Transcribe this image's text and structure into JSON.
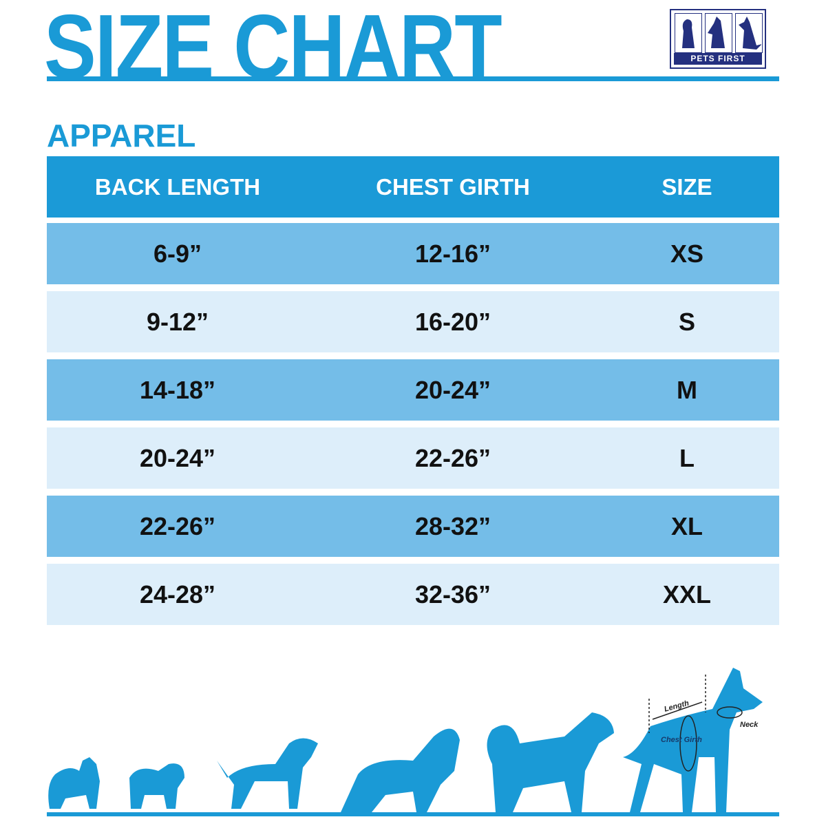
{
  "title": "SIZE CHART",
  "logo": {
    "text": "PETS FIRST",
    "color": "#24307f"
  },
  "section": "APPAREL",
  "colors": {
    "accent": "#1a9ad6",
    "row_dark": "#74bde8",
    "row_light": "#ddeefa"
  },
  "table": {
    "headers": [
      "BACK LENGTH",
      "CHEST GIRTH",
      "SIZE"
    ],
    "rows": [
      [
        "6-9”",
        "12-16”",
        "XS"
      ],
      [
        "9-12”",
        "16-20”",
        "S"
      ],
      [
        "14-18”",
        "20-24”",
        "M"
      ],
      [
        "20-24”",
        "22-26”",
        "L"
      ],
      [
        "22-26”",
        "28-32”",
        "XL"
      ],
      [
        "24-28”",
        "32-36”",
        "XXL"
      ]
    ]
  },
  "diagram": {
    "length": "Length",
    "chest": "Chest Girth",
    "neck": "Neck"
  }
}
